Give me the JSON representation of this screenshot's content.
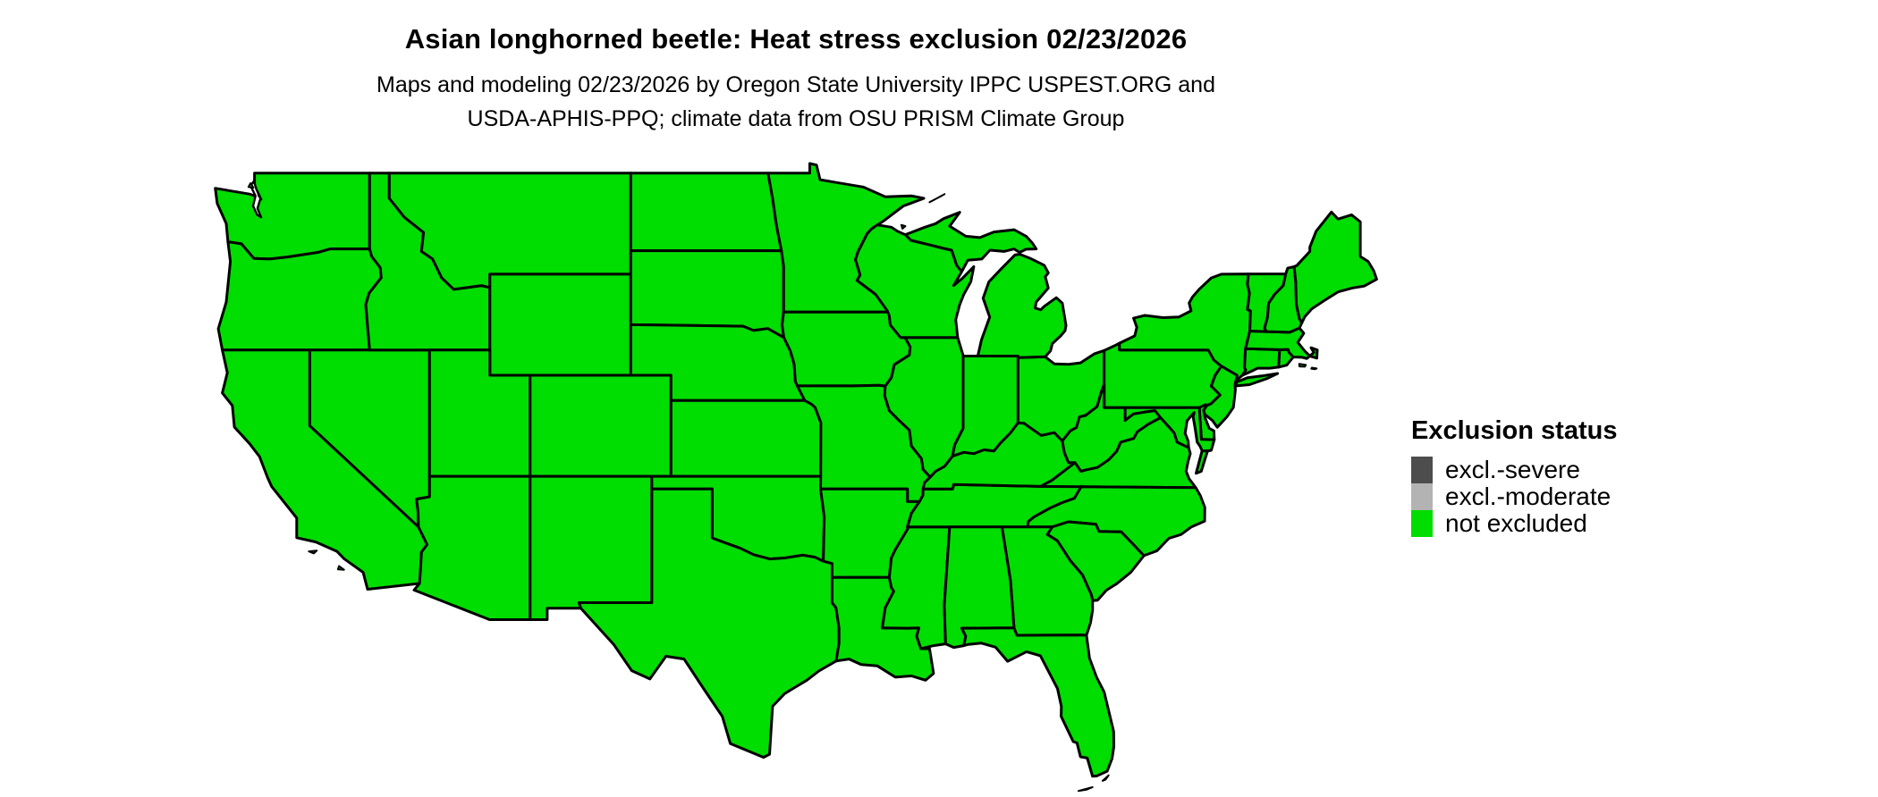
{
  "title": "Asian longhorned beetle: Heat stress exclusion 02/23/2026",
  "subtitle_line1": "Maps and modeling 02/23/2026 by Oregon State University IPPC USPEST.ORG and",
  "subtitle_line2": "USDA-APHIS-PPQ; climate data from OSU PRISM Climate Group",
  "legend": {
    "title": "Exclusion status",
    "entries": [
      {
        "label": "excl.-severe",
        "color": "#4d4d4d"
      },
      {
        "label": "excl.-moderate",
        "color": "#b3b3b3"
      },
      {
        "label": "not excluded",
        "color": "#00dd00"
      }
    ]
  },
  "map": {
    "fill_status": "not excluded",
    "fill_color": "#00dd00",
    "border_color": "#000000",
    "water_color": "#ffffff"
  }
}
